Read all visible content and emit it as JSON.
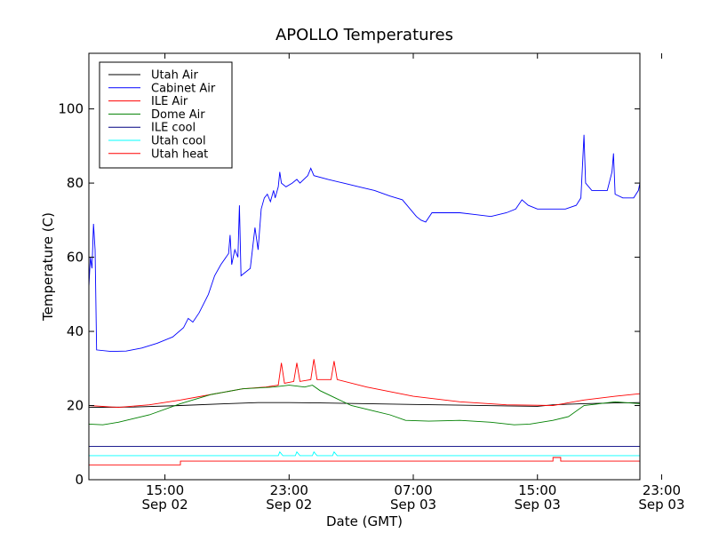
{
  "chart_data": {
    "type": "line",
    "title": "APOLLO Temperatures",
    "xlabel": "Date (GMT)",
    "ylabel": "Temperature (C)",
    "xunit": "hours since Sep 02 00:00 GMT",
    "xlim": [
      10.1,
      45.6
    ],
    "ylim": [
      0,
      115
    ],
    "yticks": [
      0,
      20,
      40,
      60,
      80,
      100
    ],
    "xticks": [
      {
        "value": 15,
        "time": "15:00",
        "date": "Sep 02"
      },
      {
        "value": 23,
        "time": "23:00",
        "date": "Sep 02"
      },
      {
        "value": 31,
        "time": "07:00",
        "date": "Sep 03"
      },
      {
        "value": 39,
        "time": "15:00",
        "date": "Sep 03"
      },
      {
        "value": 47,
        "time": "23:00",
        "date": "Sep 03"
      }
    ],
    "legend_position": "upper-left",
    "series": [
      {
        "name": "Utah Air",
        "color": "#000000",
        "points": [
          [
            10.1,
            19.5
          ],
          [
            13,
            19.6
          ],
          [
            16,
            20
          ],
          [
            19,
            20.5
          ],
          [
            21,
            20.8
          ],
          [
            23,
            20.8
          ],
          [
            25,
            20.7
          ],
          [
            28,
            20.5
          ],
          [
            31,
            20.3
          ],
          [
            34,
            20.1
          ],
          [
            37,
            19.9
          ],
          [
            39,
            19.8
          ],
          [
            40,
            20.2
          ],
          [
            42,
            20.5
          ],
          [
            44,
            20.7
          ],
          [
            45.6,
            20.8
          ]
        ]
      },
      {
        "name": "Cabinet Air",
        "color": "#0000ff",
        "points": [
          [
            10.1,
            52
          ],
          [
            10.2,
            60
          ],
          [
            10.3,
            57
          ],
          [
            10.4,
            69
          ],
          [
            10.5,
            62
          ],
          [
            10.6,
            35
          ],
          [
            11.5,
            34.6
          ],
          [
            12.5,
            34.7
          ],
          [
            13.5,
            35.5
          ],
          [
            14.5,
            36.8
          ],
          [
            15.5,
            38.5
          ],
          [
            16.2,
            41
          ],
          [
            16.5,
            43.5
          ],
          [
            16.8,
            42.5
          ],
          [
            17.2,
            45
          ],
          [
            17.8,
            50
          ],
          [
            18.2,
            55
          ],
          [
            18.6,
            58
          ],
          [
            19.1,
            61
          ],
          [
            19.2,
            66
          ],
          [
            19.3,
            58
          ],
          [
            19.5,
            62
          ],
          [
            19.7,
            60
          ],
          [
            19.8,
            74
          ],
          [
            19.9,
            55
          ],
          [
            20.5,
            57
          ],
          [
            20.8,
            68
          ],
          [
            21.0,
            62
          ],
          [
            21.2,
            73
          ],
          [
            21.4,
            76
          ],
          [
            21.6,
            77
          ],
          [
            21.8,
            75
          ],
          [
            22.0,
            78
          ],
          [
            22.1,
            76
          ],
          [
            22.3,
            79
          ],
          [
            22.4,
            83
          ],
          [
            22.5,
            80
          ],
          [
            22.8,
            79
          ],
          [
            23.2,
            80
          ],
          [
            23.5,
            81
          ],
          [
            23.7,
            80
          ],
          [
            24.2,
            82
          ],
          [
            24.4,
            84
          ],
          [
            24.6,
            82
          ],
          [
            25.5,
            81
          ],
          [
            26.5,
            80
          ],
          [
            27.5,
            79
          ],
          [
            28.5,
            78
          ],
          [
            29.5,
            76.5
          ],
          [
            30.3,
            75.5
          ],
          [
            30.8,
            73
          ],
          [
            31.2,
            71
          ],
          [
            31.5,
            70
          ],
          [
            31.8,
            69.5
          ],
          [
            32.2,
            72
          ],
          [
            33,
            72
          ],
          [
            34,
            72
          ],
          [
            35,
            71.5
          ],
          [
            36,
            71
          ],
          [
            37,
            72
          ],
          [
            37.6,
            73
          ],
          [
            38.0,
            75.5
          ],
          [
            38.4,
            74
          ],
          [
            39,
            73
          ],
          [
            40,
            73
          ],
          [
            40.8,
            73
          ],
          [
            41.5,
            74
          ],
          [
            41.8,
            76
          ],
          [
            42.0,
            93
          ],
          [
            42.1,
            80
          ],
          [
            42.5,
            78
          ],
          [
            43,
            78
          ],
          [
            43.5,
            78
          ],
          [
            43.8,
            83
          ],
          [
            43.9,
            88
          ],
          [
            44.0,
            77
          ],
          [
            44.5,
            76
          ],
          [
            45.2,
            76
          ],
          [
            45.5,
            78
          ],
          [
            45.6,
            80
          ]
        ]
      },
      {
        "name": "ILE Air",
        "color": "#ff0000",
        "points": [
          [
            10.1,
            20
          ],
          [
            12,
            19.5
          ],
          [
            14,
            20.2
          ],
          [
            16,
            21.5
          ],
          [
            18,
            23
          ],
          [
            20,
            24.5
          ],
          [
            21.5,
            25
          ],
          [
            22.3,
            25.5
          ],
          [
            22.5,
            31.5
          ],
          [
            22.7,
            26
          ],
          [
            23.3,
            26.5
          ],
          [
            23.5,
            31.5
          ],
          [
            23.7,
            26.5
          ],
          [
            24.4,
            27
          ],
          [
            24.6,
            32.5
          ],
          [
            24.8,
            27
          ],
          [
            25.7,
            27
          ],
          [
            25.9,
            32
          ],
          [
            26.1,
            27
          ],
          [
            28,
            25
          ],
          [
            31,
            22.5
          ],
          [
            34,
            21
          ],
          [
            37,
            20.2
          ],
          [
            40,
            20
          ],
          [
            42,
            21.5
          ],
          [
            44,
            22.5
          ],
          [
            45.6,
            23.2
          ]
        ]
      },
      {
        "name": "Dome Air",
        "color": "#008000",
        "points": [
          [
            10.1,
            15
          ],
          [
            11,
            14.8
          ],
          [
            12,
            15.5
          ],
          [
            14,
            17.5
          ],
          [
            16,
            20.5
          ],
          [
            18,
            23
          ],
          [
            20,
            24.5
          ],
          [
            22,
            25
          ],
          [
            23,
            25.5
          ],
          [
            24,
            25
          ],
          [
            24.5,
            25.5
          ],
          [
            25,
            24
          ],
          [
            26,
            22
          ],
          [
            27,
            20
          ],
          [
            28.5,
            18.5
          ],
          [
            29.5,
            17.5
          ],
          [
            30.5,
            16
          ],
          [
            32,
            15.8
          ],
          [
            34,
            16
          ],
          [
            36,
            15.5
          ],
          [
            37.5,
            14.8
          ],
          [
            38.5,
            15
          ],
          [
            40,
            16
          ],
          [
            41,
            17
          ],
          [
            42,
            20
          ],
          [
            44,
            21
          ],
          [
            45.6,
            20.5
          ]
        ]
      },
      {
        "name": "ILE cool",
        "color": "#000080",
        "points": [
          [
            10.1,
            9
          ],
          [
            45.6,
            9
          ]
        ]
      },
      {
        "name": "Utah cool",
        "color": "#00ffff",
        "points": [
          [
            10.1,
            6.5
          ],
          [
            22.3,
            6.5
          ],
          [
            22.4,
            7.5
          ],
          [
            22.6,
            6.5
          ],
          [
            23.4,
            6.5
          ],
          [
            23.5,
            7.5
          ],
          [
            23.7,
            6.5
          ],
          [
            24.5,
            6.5
          ],
          [
            24.6,
            7.5
          ],
          [
            24.8,
            6.5
          ],
          [
            25.8,
            6.5
          ],
          [
            25.9,
            7.5
          ],
          [
            26.1,
            6.5
          ],
          [
            45.6,
            6.5
          ]
        ]
      },
      {
        "name": "Utah heat",
        "color": "#ff0000",
        "points": [
          [
            10.1,
            4
          ],
          [
            16,
            4
          ],
          [
            16,
            5
          ],
          [
            40,
            5
          ],
          [
            40,
            6
          ],
          [
            40.5,
            6
          ],
          [
            40.5,
            5
          ],
          [
            45.6,
            5
          ]
        ]
      }
    ]
  }
}
